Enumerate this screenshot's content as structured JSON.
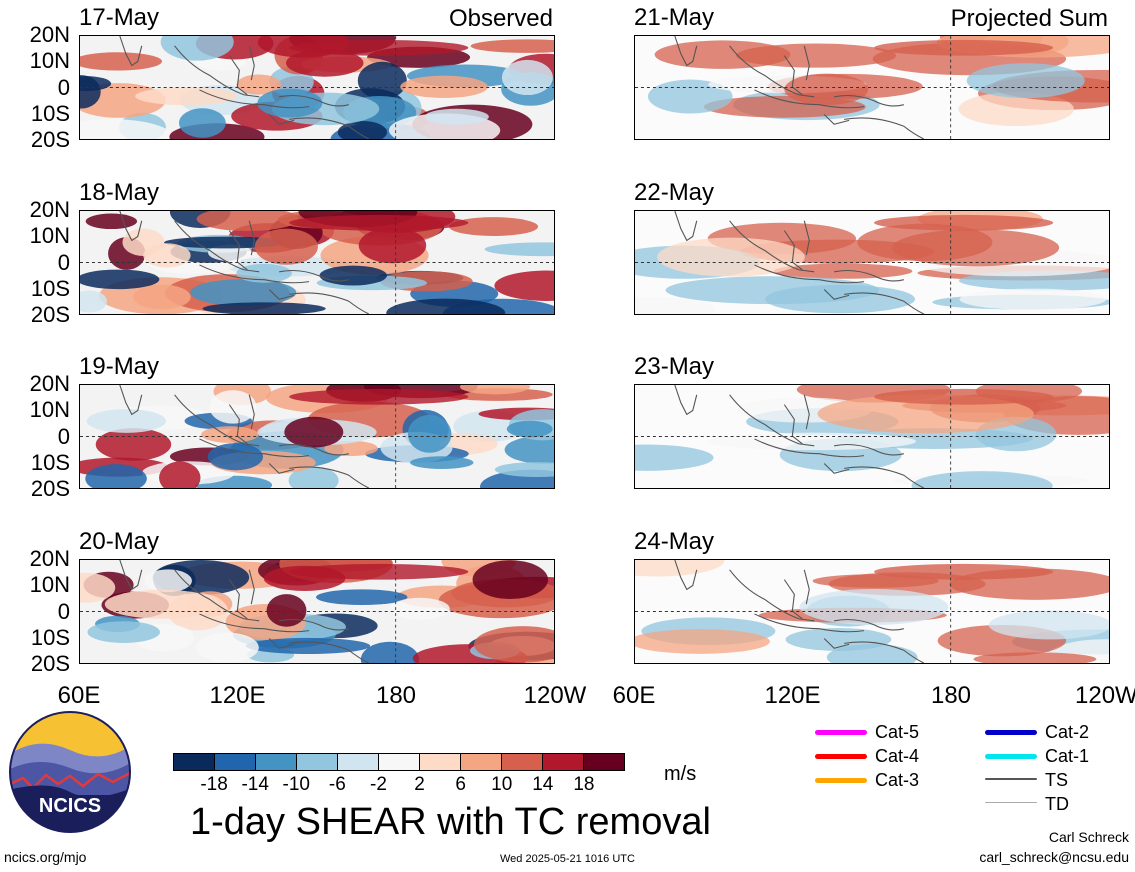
{
  "panels": [
    {
      "date": "17-May",
      "tag": "Observed"
    },
    {
      "date": "21-May",
      "tag": "Projected Sum"
    },
    {
      "date": "18-May",
      "tag": ""
    },
    {
      "date": "22-May",
      "tag": ""
    },
    {
      "date": "19-May",
      "tag": ""
    },
    {
      "date": "23-May",
      "tag": ""
    },
    {
      "date": "20-May",
      "tag": ""
    },
    {
      "date": "24-May",
      "tag": ""
    }
  ],
  "lat_labels": [
    "20N",
    "10N",
    "0",
    "10S",
    "20S"
  ],
  "lon_labels": [
    "60E",
    "120E",
    "180",
    "120W"
  ],
  "colorbar": {
    "colors": [
      "#0a2a5c",
      "#2166ac",
      "#4393c3",
      "#92c5de",
      "#d1e5f0",
      "#f7f7f7",
      "#fddbc7",
      "#f4a582",
      "#d6604d",
      "#b2182b",
      "#67001f"
    ],
    "labels": [
      "-18",
      "-14",
      "-10",
      "-6",
      "-2",
      "2",
      "6",
      "10",
      "14",
      "18"
    ],
    "units": "m/s"
  },
  "title": "1-day SHEAR with TC removal",
  "legend": [
    {
      "label": "Cat-5",
      "color": "#ff00ff"
    },
    {
      "label": "Cat-4",
      "color": "#ff0000"
    },
    {
      "label": "Cat-3",
      "color": "#ffa500"
    },
    {
      "label": "Cat-2",
      "color": "#0000cc"
    },
    {
      "label": "Cat-1",
      "color": "#00e5ee"
    },
    {
      "label": "TS",
      "color": "#555555"
    },
    {
      "label": "TD",
      "color": "#aaaaaa"
    }
  ],
  "logo_text": "NCICS",
  "footer": {
    "url": "ncics.org/mjo",
    "timestamp": "Wed 2025-05-21 1016 UTC",
    "author": "Carl Schreck",
    "email": "carl_schreck@ncsu.edu"
  }
}
